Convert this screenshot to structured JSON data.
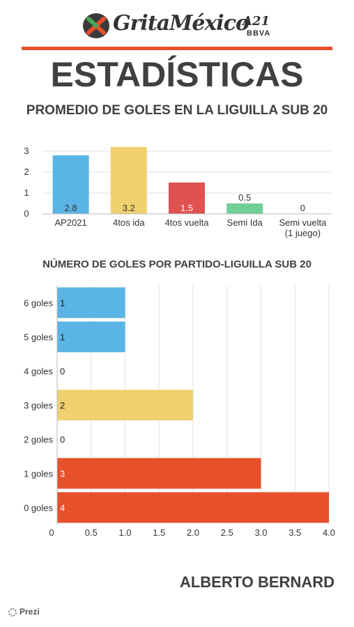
{
  "header": {
    "logo_text": "GritaMéxico",
    "logo_edition": "A21",
    "logo_sponsor": "BBVA",
    "page_title": "ESTADÍSTICAS",
    "rule_color": "#e6502a"
  },
  "chart_data": [
    {
      "type": "bar",
      "title": "PROMEDIO DE GOLES EN LA LIGUILLA SUB 20",
      "categories": [
        "AP2021",
        "4tos ida",
        "4tos vuelta",
        "Semi Ida",
        "Semi vuelta (1 juego)"
      ],
      "values": [
        2.8,
        3.2,
        1.5,
        0.5,
        0
      ],
      "data_labels": [
        "2.8",
        "3.2",
        "1.5",
        "0.5",
        "0"
      ],
      "colors": [
        "#5ab4e5",
        "#f0d06f",
        "#e05151",
        "#72cf98",
        "#72cf98"
      ],
      "ylim": [
        0,
        3.2
      ],
      "yticks": [
        "0",
        "1",
        "2",
        "3"
      ],
      "grid": true
    },
    {
      "type": "bar",
      "orientation": "horizontal",
      "title": "NÚMERO DE GOLES POR PARTIDO-LIGUILLA SUB 20",
      "categories": [
        "6 goles",
        "5 goles",
        "4 goles",
        "3 goles",
        "2 goles",
        "1 goles",
        "0 goles"
      ],
      "values": [
        1,
        1,
        0,
        2,
        0,
        3,
        4
      ],
      "data_labels": [
        "1",
        "1",
        "0",
        "2",
        "0",
        "3",
        "4"
      ],
      "colors": [
        "#5ab4e5",
        "#5ab4e5",
        "#5ab4e5",
        "#f0d06f",
        "#f0d06f",
        "#e6502a",
        "#e6502a"
      ],
      "xlim": [
        0,
        4
      ],
      "xticks": [
        "0",
        "0.5",
        "1.0",
        "1.5",
        "2.0",
        "2.5",
        "3.0",
        "3.5",
        "4.0"
      ],
      "grid": true
    }
  ],
  "footer": {
    "author": "ALBERTO BERNARD",
    "watermark": "Prezi"
  }
}
